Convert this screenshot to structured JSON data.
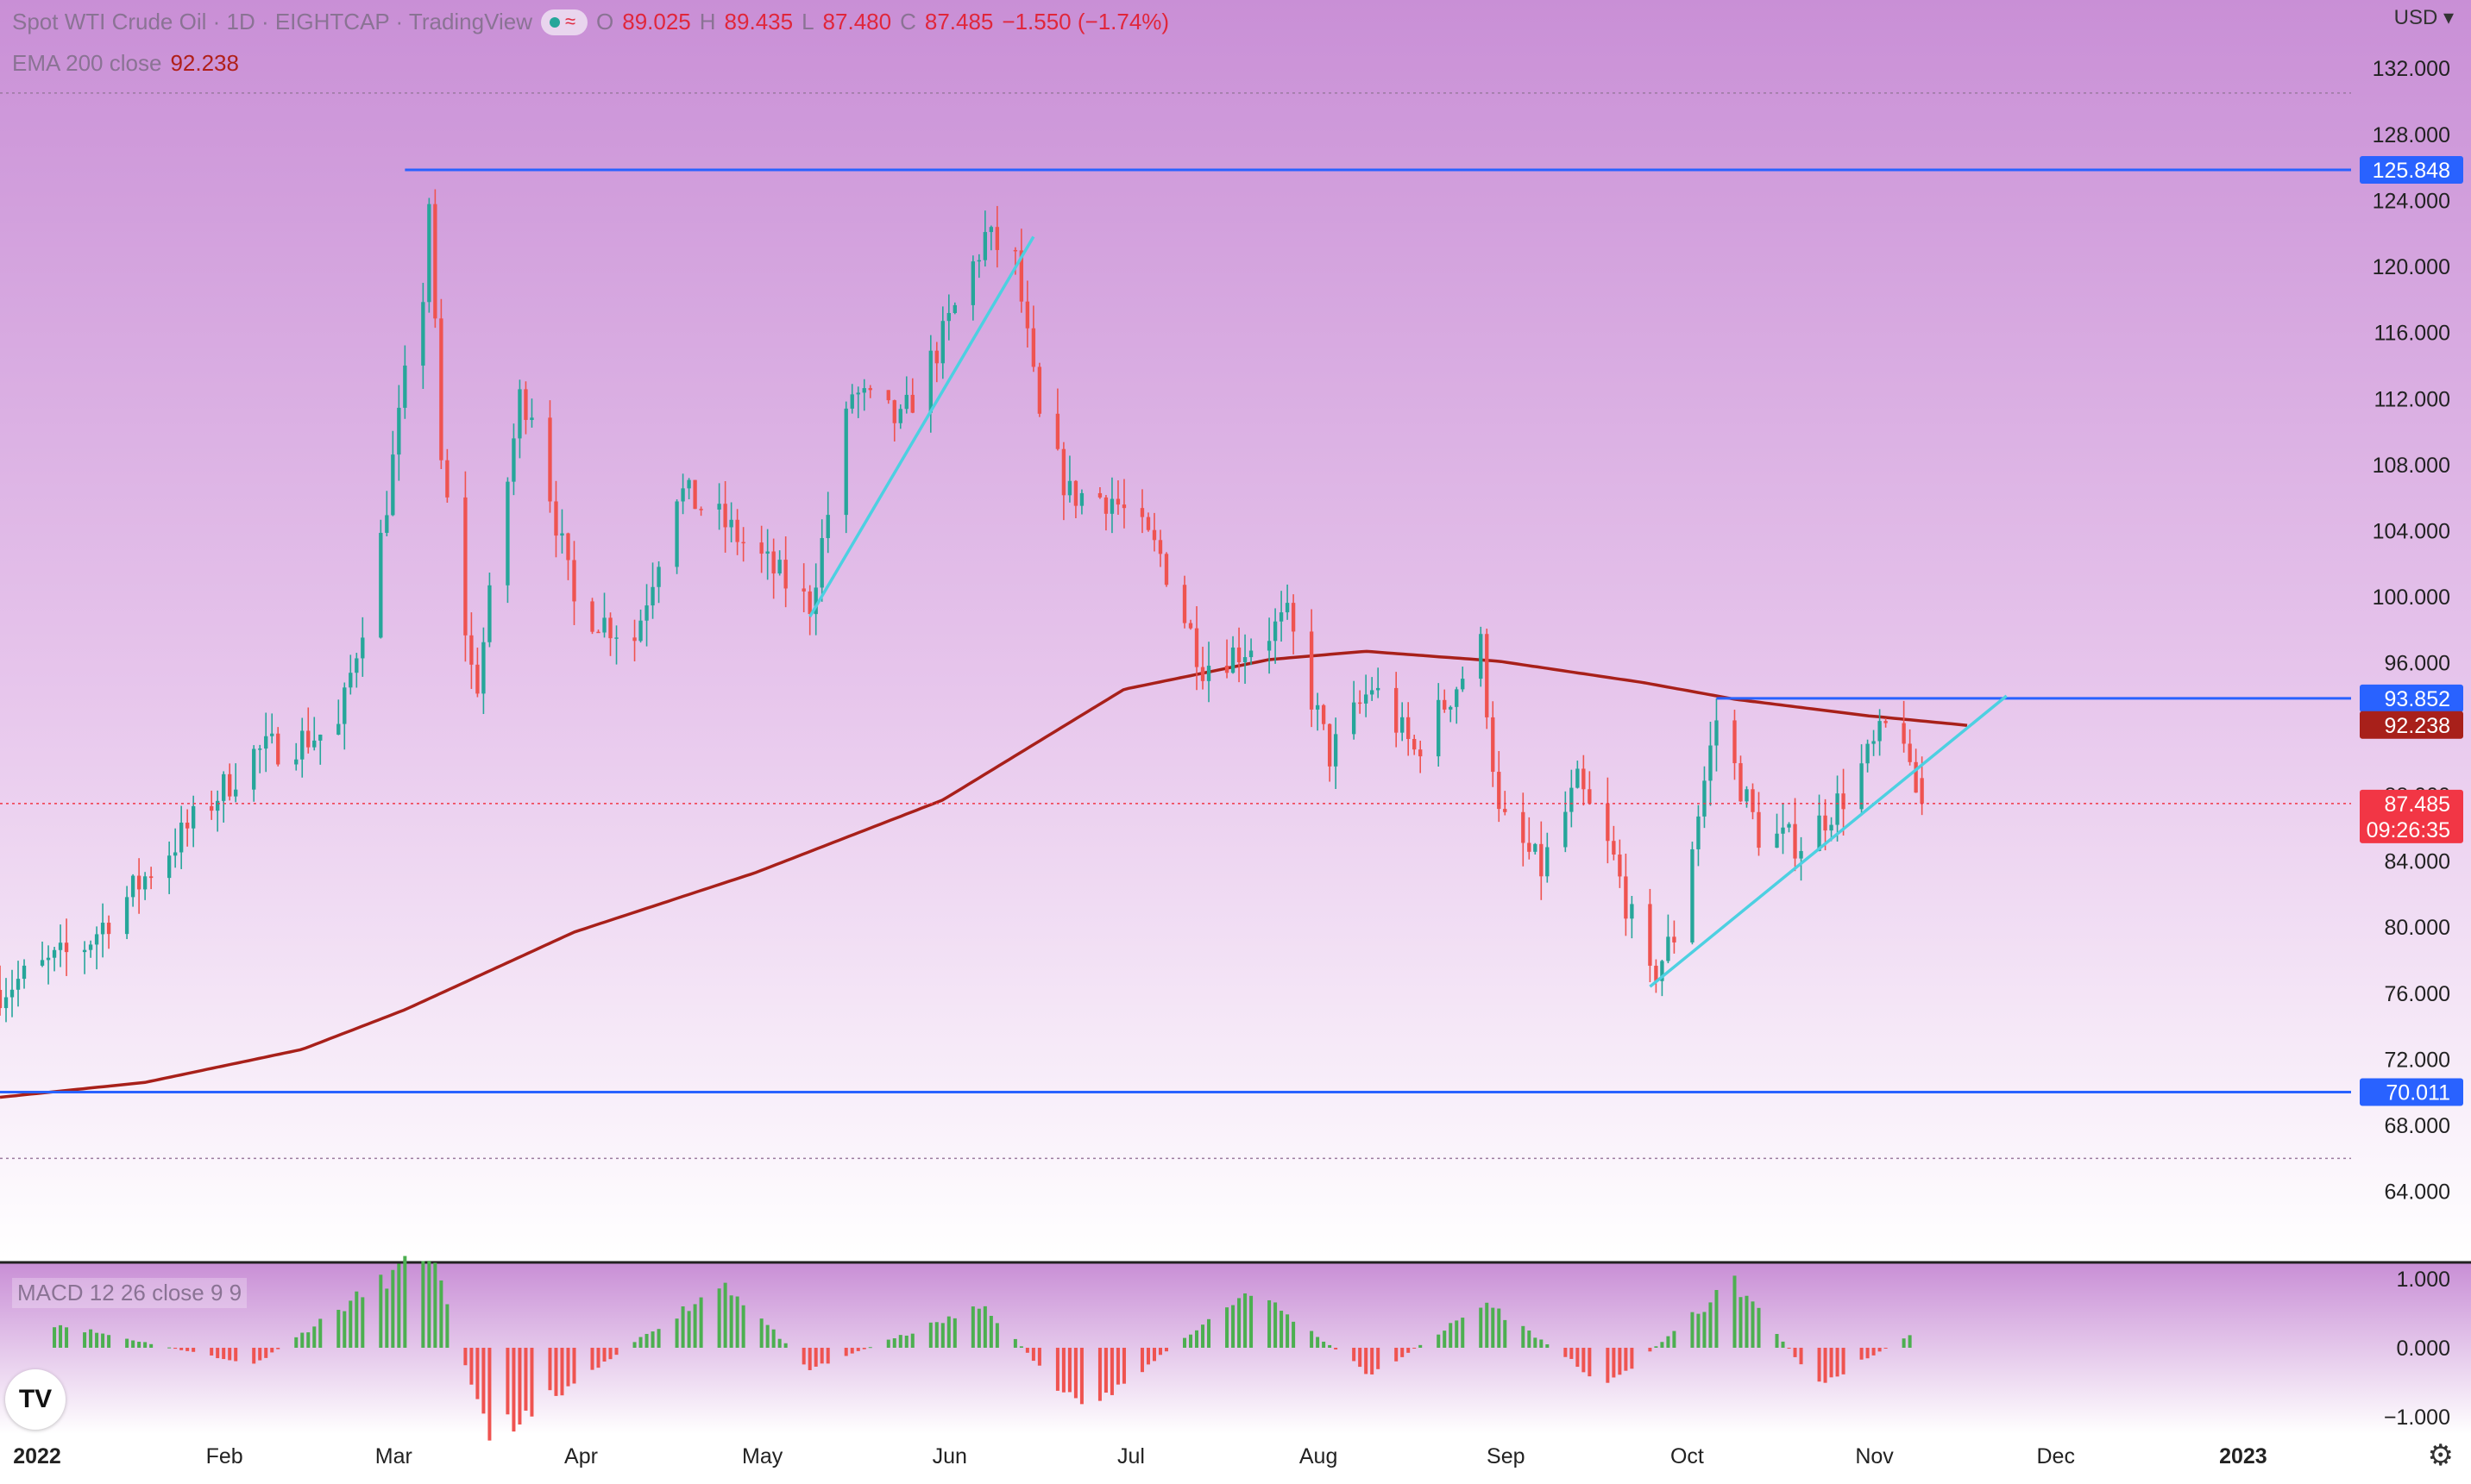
{
  "header": {
    "symbol": "Spot WTI Crude Oil · 1D · EIGHTCAP · TradingView",
    "open_label": "O",
    "open": "89.025",
    "high_label": "H",
    "high": "89.435",
    "low_label": "L",
    "low": "87.480",
    "close_label": "C",
    "close": "87.485",
    "change": "−1.550 (−1.74%)",
    "ema_label": "EMA 200 close",
    "ema_value": "92.238",
    "macd_label": "MACD 12 26 close 9 9"
  },
  "currency": "USD",
  "colors": {
    "background_top": "#c98fd6",
    "up": "#26a69a",
    "down": "#ef5350",
    "ema": "#a8201a",
    "support": "#2962ff",
    "trend": "#4dd0e1",
    "last": "#f23645"
  },
  "price_ticks": [
    "132.000",
    "128.000",
    "124.000",
    "120.000",
    "116.000",
    "112.000",
    "108.000",
    "104.000",
    "100.000",
    "96.000",
    "92.000",
    "88.000",
    "84.000",
    "80.000",
    "76.000",
    "72.000",
    "68.000",
    "64.000"
  ],
  "macd_ticks": [
    "1.000",
    "0.000",
    "−1.000"
  ],
  "time_labels": [
    "2022",
    "Feb",
    "Mar",
    "Apr",
    "May",
    "Jun",
    "Jul",
    "Aug",
    "Sep",
    "Oct",
    "Nov",
    "Dec",
    "2023"
  ],
  "level_badges": {
    "upper": "125.848",
    "triangle": "93.852",
    "ema": "92.238",
    "last": "87.485",
    "countdown": "09:26:35",
    "lower": "70.011"
  },
  "chart_data": {
    "type": "candlestick",
    "title": "Spot WTI Crude Oil · 1D · EIGHTCAP",
    "ylim": [
      62,
      133
    ],
    "x_range": [
      "2021-12-27",
      "2023-01-20"
    ],
    "horizontal_levels": [
      125.848,
      93.852,
      70.011
    ],
    "last_price": 87.485,
    "trendlines": [
      {
        "from": [
          "2022-05-10",
          98.8
        ],
        "to": [
          "2022-06-16",
          121.8
        ]
      },
      {
        "from": [
          "2022-09-26",
          76.4
        ],
        "to": [
          "2022-11-24",
          94.0
        ]
      }
    ],
    "series": [
      {
        "name": "Close",
        "x": [
          "2021-12-27",
          "2022-01-10",
          "2022-01-24",
          "2022-02-07",
          "2022-02-21",
          "2022-02-28",
          "2022-03-04",
          "2022-03-07",
          "2022-03-08",
          "2022-03-10",
          "2022-03-15",
          "2022-03-16",
          "2022-03-23",
          "2022-03-25",
          "2022-04-01",
          "2022-04-11",
          "2022-04-18",
          "2022-04-25",
          "2022-05-09",
          "2022-05-10",
          "2022-05-17",
          "2022-05-25",
          "2022-06-01",
          "2022-06-08",
          "2022-06-13",
          "2022-06-17",
          "2022-06-22",
          "2022-06-29",
          "2022-07-07",
          "2022-07-14",
          "2022-07-21",
          "2022-07-28",
          "2022-08-04",
          "2022-08-11",
          "2022-08-18",
          "2022-08-29",
          "2022-09-01",
          "2022-09-08",
          "2022-09-14",
          "2022-09-20",
          "2022-09-26",
          "2022-09-30",
          "2022-10-07",
          "2022-10-14",
          "2022-10-21",
          "2022-10-28",
          "2022-11-04",
          "2022-11-07",
          "2022-11-08",
          "2022-11-10"
        ],
        "values": [
          76.2,
          78.9,
          84.7,
          90.5,
          92.0,
          103.4,
          113.0,
          118.4,
          124.0,
          108.0,
          95.6,
          94.8,
          112.0,
          111.5,
          99.5,
          97.5,
          106.5,
          104.7,
          99.8,
          99.6,
          112.4,
          110.5,
          115.7,
          121.8,
          120.3,
          110.6,
          106.2,
          106.0,
          102.5,
          95.9,
          96.9,
          98.6,
          90.4,
          94.6,
          90.6,
          97.0,
          86.6,
          83.5,
          88.6,
          84.0,
          76.7,
          79.5,
          92.6,
          85.6,
          85.1,
          87.9,
          92.0,
          91.8,
          88.9,
          87.485
        ]
      },
      {
        "name": "EMA 200 close",
        "x": [
          "2021-12-27",
          "2022-01-20",
          "2022-02-15",
          "2022-03-04",
          "2022-04-01",
          "2022-05-01",
          "2022-06-01",
          "2022-07-01",
          "2022-07-25",
          "2022-08-10",
          "2022-09-01",
          "2022-09-25",
          "2022-10-10",
          "2022-11-01",
          "2022-11-18"
        ],
        "values": [
          69.7,
          70.6,
          72.6,
          75.0,
          79.7,
          83.3,
          87.7,
          94.4,
          96.2,
          96.7,
          96.1,
          94.8,
          93.8,
          92.8,
          92.2
        ]
      },
      {
        "name": "MACD 12 26 close 9 9",
        "x": [
          "2022-01-05",
          "2022-02-07",
          "2022-03-08",
          "2022-03-18",
          "2022-04-26",
          "2022-05-10",
          "2022-06-08",
          "2022-06-24",
          "2022-07-22",
          "2022-08-11",
          "2022-08-30",
          "2022-09-19",
          "2022-10-10",
          "2022-10-24",
          "2022-11-08"
        ],
        "values": [
          0.35,
          -0.25,
          1.4,
          -1.3,
          0.95,
          -0.3,
          0.6,
          -0.95,
          0.85,
          -0.4,
          0.65,
          -0.55,
          0.95,
          -0.55,
          0.2
        ]
      }
    ]
  }
}
